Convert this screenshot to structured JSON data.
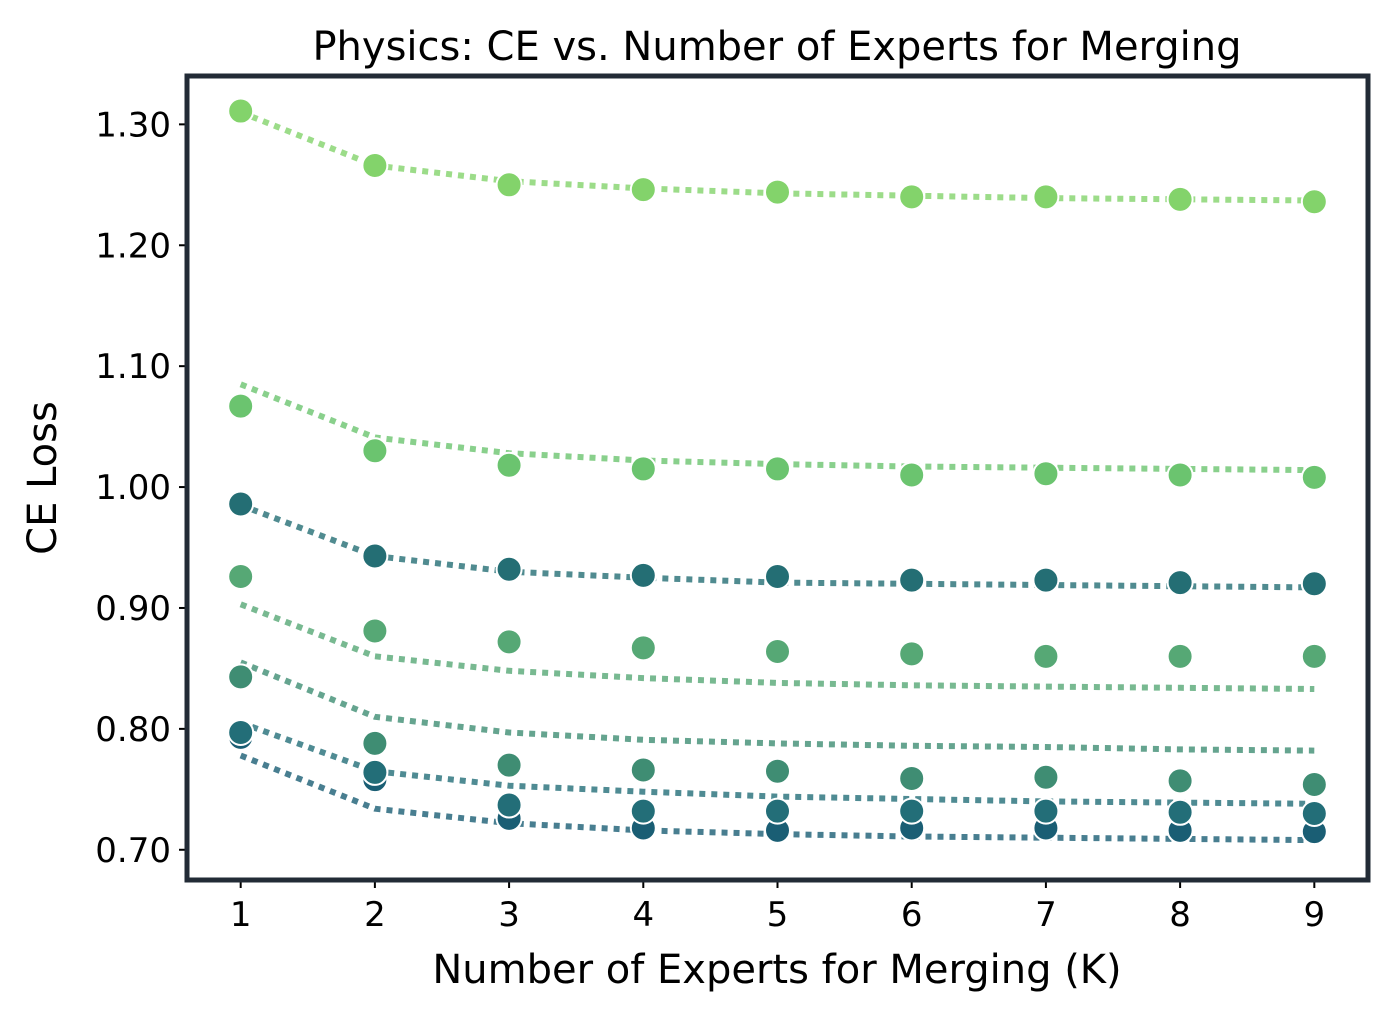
{
  "chart_data": {
    "type": "scatter",
    "title": "Physics: CE vs. Number of Experts for Merging",
    "xlabel": "Number of Experts for Merging (K)",
    "ylabel": "CE Loss",
    "x": [
      1,
      2,
      3,
      4,
      5,
      6,
      7,
      8,
      9
    ],
    "xlim": [
      0.6,
      9.4
    ],
    "ylim": [
      0.675,
      1.34
    ],
    "yticks": [
      0.7,
      0.8,
      0.9,
      1.0,
      1.1,
      1.2,
      1.3
    ],
    "ytick_labels": [
      "0.70",
      "0.80",
      "0.90",
      "1.00",
      "1.10",
      "1.20",
      "1.30"
    ],
    "xtick_labels": [
      "1",
      "2",
      "3",
      "4",
      "5",
      "6",
      "7",
      "8",
      "9"
    ],
    "grid": false,
    "frame_color": "#222b36",
    "series": [
      {
        "color": "#1a5e74",
        "values": [
          0.793,
          0.758,
          0.726,
          0.718,
          0.716,
          0.718,
          0.718,
          0.716,
          0.715
        ],
        "fit": [
          0.778,
          0.734,
          0.722,
          0.716,
          0.713,
          0.711,
          0.71,
          0.709,
          0.708
        ]
      },
      {
        "color": "#236e78",
        "values": [
          0.797,
          0.764,
          0.737,
          0.732,
          0.732,
          0.732,
          0.732,
          0.731,
          0.73
        ],
        "fit": [
          0.805,
          0.765,
          0.753,
          0.748,
          0.744,
          0.742,
          0.74,
          0.739,
          0.738
        ]
      },
      {
        "color": "#246e74",
        "values": [
          0.986,
          0.943,
          0.932,
          0.927,
          0.926,
          0.923,
          0.923,
          0.921,
          0.92
        ],
        "fit": [
          0.985,
          0.943,
          0.93,
          0.925,
          0.921,
          0.92,
          0.919,
          0.918,
          0.917
        ]
      },
      {
        "color": "#3f8d73",
        "values": [
          0.843,
          0.788,
          0.77,
          0.766,
          0.765,
          0.759,
          0.76,
          0.757,
          0.754
        ],
        "fit": [
          0.855,
          0.81,
          0.797,
          0.791,
          0.788,
          0.786,
          0.785,
          0.783,
          0.782
        ]
      },
      {
        "color": "#56a875",
        "values": [
          0.926,
          0.881,
          0.872,
          0.867,
          0.864,
          0.862,
          0.86,
          0.86,
          0.86
        ],
        "fit": [
          0.903,
          0.86,
          0.848,
          0.842,
          0.838,
          0.836,
          0.835,
          0.834,
          0.833
        ]
      },
      {
        "color": "#6bc46f",
        "values": [
          1.067,
          1.03,
          1.018,
          1.015,
          1.015,
          1.01,
          1.011,
          1.01,
          1.008
        ],
        "fit": [
          1.085,
          1.041,
          1.028,
          1.022,
          1.019,
          1.017,
          1.016,
          1.015,
          1.014
        ]
      },
      {
        "color": "#83d36b",
        "values": [
          1.311,
          1.266,
          1.25,
          1.246,
          1.244,
          1.24,
          1.24,
          1.238,
          1.236
        ],
        "fit": [
          1.31,
          1.266,
          1.253,
          1.247,
          1.243,
          1.241,
          1.239,
          1.238,
          1.237
        ]
      }
    ]
  }
}
